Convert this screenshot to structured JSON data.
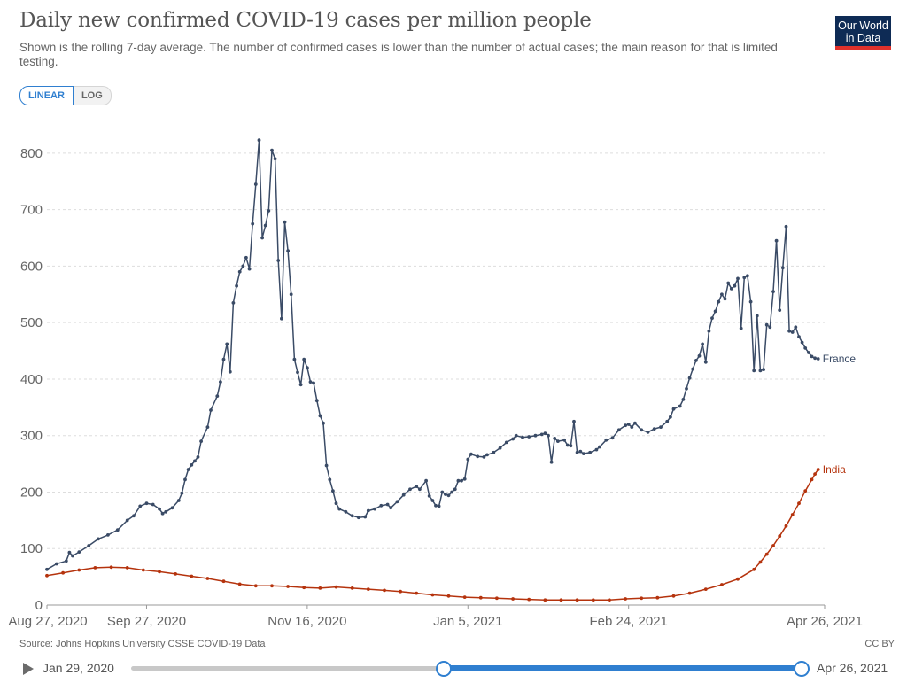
{
  "header": {
    "title": "Daily new confirmed COVID-19 cases per million people",
    "subtitle": "Shown is the rolling 7-day average. The number of confirmed cases is lower than the number of actual cases; the main reason for that is limited testing.",
    "logo_line1": "Our World",
    "logo_line2": "in Data"
  },
  "controls": {
    "linear_label": "LINEAR",
    "log_label": "LOG",
    "selected": "LINEAR"
  },
  "footer": {
    "source": "Source: Johns Hopkins University CSSE COVID-19 Data",
    "license": "CC BY"
  },
  "timeline": {
    "start_label": "Jan 29, 2020",
    "end_label": "Apr 26, 2021",
    "range_start": "Aug 27, 2020",
    "range_end": "Apr 26, 2021"
  },
  "colors": {
    "france": "#3a4b66",
    "india": "#b5330d",
    "grid": "#dddddd",
    "accent": "#2f7fd0"
  },
  "chart_data": {
    "type": "line",
    "title": "Daily new confirmed COVID-19 cases per million people",
    "xlabel": "",
    "ylabel": "",
    "x_unit": "days since Aug 27, 2020",
    "xlim": [
      0,
      242
    ],
    "ylim": [
      0,
      850
    ],
    "yticks": [
      0,
      100,
      200,
      300,
      400,
      500,
      600,
      700,
      800
    ],
    "xticks": [
      {
        "day": 0,
        "label": "Aug 27, 2020"
      },
      {
        "day": 31,
        "label": "Sep 27, 2020"
      },
      {
        "day": 81,
        "label": "Nov 16, 2020"
      },
      {
        "day": 131,
        "label": "Jan 5, 2021"
      },
      {
        "day": 181,
        "label": "Feb 24, 2021"
      },
      {
        "day": 242,
        "label": "Apr 26, 2021"
      }
    ],
    "grid": true,
    "series": [
      {
        "name": "France",
        "label": "France",
        "points": [
          [
            0,
            63
          ],
          [
            3,
            73
          ],
          [
            6,
            78
          ],
          [
            7,
            93
          ],
          [
            8,
            87
          ],
          [
            10,
            94
          ],
          [
            13,
            105
          ],
          [
            16,
            117
          ],
          [
            19,
            124
          ],
          [
            22,
            133
          ],
          [
            25,
            150
          ],
          [
            27,
            158
          ],
          [
            29,
            175
          ],
          [
            31,
            180
          ],
          [
            33,
            178
          ],
          [
            35,
            170
          ],
          [
            36,
            162
          ],
          [
            37,
            165
          ],
          [
            39,
            172
          ],
          [
            41,
            185
          ],
          [
            42,
            198
          ],
          [
            43,
            222
          ],
          [
            44,
            240
          ],
          [
            45,
            248
          ],
          [
            46,
            255
          ],
          [
            47,
            262
          ],
          [
            48,
            290
          ],
          [
            50,
            315
          ],
          [
            51,
            345
          ],
          [
            53,
            370
          ],
          [
            54,
            395
          ],
          [
            55,
            435
          ],
          [
            56,
            462
          ],
          [
            57,
            413
          ],
          [
            58,
            535
          ],
          [
            59,
            565
          ],
          [
            60,
            590
          ],
          [
            61,
            600
          ],
          [
            62,
            615
          ],
          [
            63,
            595
          ],
          [
            64,
            675
          ],
          [
            65,
            745
          ],
          [
            66,
            823
          ],
          [
            67,
            650
          ],
          [
            68,
            672
          ],
          [
            69,
            698
          ],
          [
            70,
            805
          ],
          [
            71,
            790
          ],
          [
            72,
            610
          ],
          [
            73,
            507
          ],
          [
            74,
            678
          ],
          [
            75,
            627
          ],
          [
            76,
            550
          ],
          [
            77,
            435
          ],
          [
            78,
            412
          ],
          [
            79,
            390
          ],
          [
            80,
            435
          ],
          [
            81,
            420
          ],
          [
            82,
            395
          ],
          [
            83,
            393
          ],
          [
            84,
            362
          ],
          [
            85,
            335
          ],
          [
            86,
            322
          ],
          [
            87,
            247
          ],
          [
            88,
            222
          ],
          [
            89,
            202
          ],
          [
            90,
            180
          ],
          [
            91,
            170
          ],
          [
            93,
            165
          ],
          [
            95,
            158
          ],
          [
            97,
            155
          ],
          [
            99,
            156
          ],
          [
            100,
            167
          ],
          [
            102,
            170
          ],
          [
            104,
            176
          ],
          [
            106,
            178
          ],
          [
            107,
            172
          ],
          [
            109,
            183
          ],
          [
            111,
            195
          ],
          [
            113,
            205
          ],
          [
            115,
            210
          ],
          [
            116,
            205
          ],
          [
            118,
            220
          ],
          [
            119,
            193
          ],
          [
            120,
            185
          ],
          [
            121,
            176
          ],
          [
            122,
            175
          ],
          [
            123,
            200
          ],
          [
            124,
            196
          ],
          [
            125,
            194
          ],
          [
            126,
            200
          ],
          [
            127,
            205
          ],
          [
            128,
            220
          ],
          [
            129,
            220
          ],
          [
            130,
            223
          ],
          [
            131,
            258
          ],
          [
            132,
            267
          ],
          [
            134,
            263
          ],
          [
            136,
            262
          ],
          [
            137,
            266
          ],
          [
            139,
            270
          ],
          [
            141,
            278
          ],
          [
            143,
            288
          ],
          [
            145,
            294
          ],
          [
            146,
            300
          ],
          [
            148,
            297
          ],
          [
            150,
            298
          ],
          [
            152,
            300
          ],
          [
            154,
            302
          ],
          [
            155,
            304
          ],
          [
            156,
            300
          ],
          [
            157,
            253
          ],
          [
            158,
            295
          ],
          [
            159,
            290
          ],
          [
            161,
            292
          ],
          [
            162,
            283
          ],
          [
            163,
            282
          ],
          [
            164,
            325
          ],
          [
            165,
            270
          ],
          [
            166,
            272
          ],
          [
            167,
            268
          ],
          [
            169,
            270
          ],
          [
            171,
            275
          ],
          [
            172,
            280
          ],
          [
            174,
            292
          ],
          [
            176,
            296
          ],
          [
            178,
            310
          ],
          [
            180,
            318
          ],
          [
            181,
            320
          ],
          [
            182,
            315
          ],
          [
            183,
            322
          ],
          [
            185,
            310
          ],
          [
            187,
            306
          ],
          [
            189,
            312
          ],
          [
            191,
            315
          ],
          [
            193,
            325
          ],
          [
            194,
            333
          ],
          [
            195,
            347
          ],
          [
            197,
            352
          ],
          [
            198,
            364
          ],
          [
            199,
            383
          ],
          [
            200,
            402
          ],
          [
            201,
            418
          ],
          [
            202,
            433
          ],
          [
            203,
            441
          ],
          [
            204,
            462
          ],
          [
            205,
            430
          ],
          [
            206,
            485
          ],
          [
            207,
            508
          ],
          [
            208,
            520
          ],
          [
            209,
            537
          ],
          [
            210,
            550
          ],
          [
            211,
            542
          ],
          [
            212,
            570
          ],
          [
            213,
            560
          ],
          [
            214,
            565
          ],
          [
            215,
            578
          ],
          [
            216,
            490
          ],
          [
            217,
            580
          ],
          [
            218,
            583
          ],
          [
            219,
            537
          ],
          [
            220,
            415
          ],
          [
            221,
            512
          ],
          [
            222,
            415
          ],
          [
            223,
            417
          ],
          [
            224,
            496
          ],
          [
            225,
            492
          ],
          [
            226,
            555
          ],
          [
            227,
            645
          ],
          [
            228,
            522
          ],
          [
            229,
            597
          ],
          [
            230,
            670
          ],
          [
            231,
            485
          ],
          [
            232,
            483
          ],
          [
            233,
            492
          ],
          [
            234,
            475
          ],
          [
            235,
            465
          ],
          [
            236,
            455
          ],
          [
            237,
            447
          ],
          [
            238,
            440
          ],
          [
            239,
            437
          ],
          [
            240,
            436
          ]
        ]
      },
      {
        "name": "India",
        "label": "India",
        "points": [
          [
            0,
            52
          ],
          [
            5,
            57
          ],
          [
            10,
            62
          ],
          [
            15,
            66
          ],
          [
            20,
            67
          ],
          [
            25,
            66
          ],
          [
            30,
            62
          ],
          [
            35,
            59
          ],
          [
            40,
            55
          ],
          [
            45,
            51
          ],
          [
            50,
            47
          ],
          [
            55,
            42
          ],
          [
            60,
            37
          ],
          [
            65,
            34
          ],
          [
            70,
            34
          ],
          [
            75,
            33
          ],
          [
            80,
            31
          ],
          [
            85,
            30
          ],
          [
            90,
            32
          ],
          [
            95,
            30
          ],
          [
            100,
            28
          ],
          [
            105,
            26
          ],
          [
            110,
            24
          ],
          [
            115,
            21
          ],
          [
            120,
            18
          ],
          [
            125,
            16
          ],
          [
            130,
            14
          ],
          [
            135,
            13
          ],
          [
            140,
            12
          ],
          [
            145,
            11
          ],
          [
            150,
            10
          ],
          [
            155,
            9
          ],
          [
            160,
            9
          ],
          [
            165,
            9
          ],
          [
            170,
            9
          ],
          [
            175,
            9
          ],
          [
            180,
            11
          ],
          [
            185,
            12
          ],
          [
            190,
            13
          ],
          [
            195,
            16
          ],
          [
            200,
            21
          ],
          [
            205,
            28
          ],
          [
            210,
            36
          ],
          [
            215,
            46
          ],
          [
            220,
            63
          ],
          [
            222,
            76
          ],
          [
            224,
            90
          ],
          [
            226,
            105
          ],
          [
            228,
            122
          ],
          [
            230,
            140
          ],
          [
            232,
            160
          ],
          [
            234,
            180
          ],
          [
            236,
            202
          ],
          [
            238,
            222
          ],
          [
            239,
            232
          ],
          [
            240,
            240
          ]
        ]
      }
    ]
  }
}
